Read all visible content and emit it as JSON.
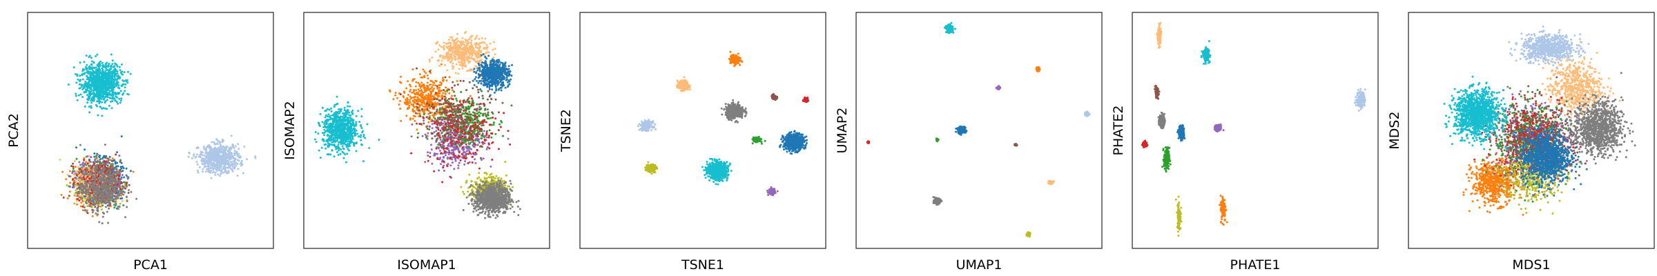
{
  "chart_data": [
    {
      "type": "scatter",
      "xlabel": "PCA1",
      "ylabel": "PCA2",
      "grid": false,
      "ticks": false,
      "xlim": [
        0,
        10
      ],
      "ylim": [
        0,
        10
      ],
      "clusters": [
        {
          "color": "#17becf",
          "center": [
            3.0,
            7.0
          ],
          "spread": [
            0.9,
            0.9
          ],
          "n": 950
        },
        {
          "color": "#aec7e8",
          "center": [
            7.8,
            3.8
          ],
          "spread": [
            0.9,
            0.65
          ],
          "n": 650
        },
        {
          "color": "#ff7f0e",
          "center": [
            2.8,
            2.7
          ],
          "spread": [
            1.0,
            1.0
          ],
          "n": 420
        },
        {
          "color": "#1f77b4",
          "center": [
            3.0,
            2.9
          ],
          "spread": [
            0.95,
            0.95
          ],
          "n": 420
        },
        {
          "color": "#2ca02c",
          "center": [
            2.9,
            2.8
          ],
          "spread": [
            0.95,
            0.95
          ],
          "n": 260
        },
        {
          "color": "#9467bd",
          "center": [
            2.9,
            2.9
          ],
          "spread": [
            0.95,
            0.95
          ],
          "n": 260
        },
        {
          "color": "#bcbd22",
          "center": [
            2.8,
            2.6
          ],
          "spread": [
            0.9,
            0.9
          ],
          "n": 220
        },
        {
          "color": "#8c564b",
          "center": [
            2.9,
            2.8
          ],
          "spread": [
            0.95,
            0.95
          ],
          "n": 220
        },
        {
          "color": "#ffbb78",
          "center": [
            2.7,
            2.9
          ],
          "spread": [
            0.9,
            0.9
          ],
          "n": 220
        },
        {
          "color": "#d62728",
          "center": [
            2.9,
            2.8
          ],
          "spread": [
            0.95,
            0.95
          ],
          "n": 200
        },
        {
          "color": "#7f7f7f",
          "center": [
            3.0,
            2.6
          ],
          "spread": [
            0.95,
            1.1
          ],
          "n": 500
        }
      ]
    },
    {
      "type": "scatter",
      "xlabel": "ISOMAP1",
      "ylabel": "ISOMAP2",
      "grid": false,
      "ticks": false,
      "xlim": [
        0,
        10
      ],
      "ylim": [
        0,
        10
      ],
      "clusters": [
        {
          "color": "#17becf",
          "center": [
            1.5,
            5.0
          ],
          "spread": [
            0.8,
            0.95
          ],
          "n": 750
        },
        {
          "color": "#ffbb78",
          "center": [
            6.5,
            8.3
          ],
          "spread": [
            1.1,
            0.7
          ],
          "n": 450
        },
        {
          "color": "#1f77b4",
          "center": [
            7.7,
            7.4
          ],
          "spread": [
            0.7,
            0.6
          ],
          "n": 600
        },
        {
          "color": "#ff7f0e",
          "center": [
            5.0,
            6.3
          ],
          "spread": [
            1.1,
            1.0
          ],
          "n": 450
        },
        {
          "color": "#9467bd",
          "center": [
            6.2,
            4.6
          ],
          "spread": [
            1.3,
            1.2
          ],
          "n": 450
        },
        {
          "color": "#2ca02c",
          "center": [
            6.5,
            5.4
          ],
          "spread": [
            1.3,
            1.2
          ],
          "n": 300
        },
        {
          "color": "#8c564b",
          "center": [
            6.2,
            5.6
          ],
          "spread": [
            1.5,
            1.4
          ],
          "n": 250
        },
        {
          "color": "#bcbd22",
          "center": [
            7.5,
            2.5
          ],
          "spread": [
            0.8,
            0.6
          ],
          "n": 400
        },
        {
          "color": "#7f7f7f",
          "center": [
            7.7,
            2.1
          ],
          "spread": [
            0.8,
            0.7
          ],
          "n": 800
        },
        {
          "color": "#d62728",
          "center": [
            6.4,
            5.0
          ],
          "spread": [
            1.6,
            1.6
          ],
          "n": 200
        }
      ]
    },
    {
      "type": "scatter",
      "xlabel": "TSNE1",
      "ylabel": "TSNE2",
      "grid": false,
      "ticks": false,
      "xlim": [
        0,
        10
      ],
      "ylim": [
        0,
        10
      ],
      "clusters": [
        {
          "color": "#ff7f0e",
          "center": [
            6.3,
            8.0
          ],
          "spread": [
            0.2,
            0.2
          ],
          "n": 200
        },
        {
          "color": "#ffbb78",
          "center": [
            4.2,
            6.9
          ],
          "spread": [
            0.25,
            0.22
          ],
          "n": 220
        },
        {
          "color": "#7f7f7f",
          "center": [
            6.3,
            5.8
          ],
          "spread": [
            0.4,
            0.32
          ],
          "n": 450
        },
        {
          "color": "#8c564b",
          "center": [
            7.9,
            6.4
          ],
          "spread": [
            0.12,
            0.12
          ],
          "n": 70
        },
        {
          "color": "#d62728",
          "center": [
            9.2,
            6.3
          ],
          "spread": [
            0.1,
            0.1
          ],
          "n": 60
        },
        {
          "color": "#aec7e8",
          "center": [
            2.7,
            5.2
          ],
          "spread": [
            0.26,
            0.2
          ],
          "n": 200
        },
        {
          "color": "#2ca02c",
          "center": [
            7.2,
            4.6
          ],
          "spread": [
            0.17,
            0.12
          ],
          "n": 120
        },
        {
          "color": "#1f77b4",
          "center": [
            8.7,
            4.5
          ],
          "spread": [
            0.45,
            0.38
          ],
          "n": 550
        },
        {
          "color": "#bcbd22",
          "center": [
            2.9,
            3.4
          ],
          "spread": [
            0.22,
            0.18
          ],
          "n": 180
        },
        {
          "color": "#17becf",
          "center": [
            5.6,
            3.3
          ],
          "spread": [
            0.45,
            0.38
          ],
          "n": 650
        },
        {
          "color": "#9467bd",
          "center": [
            7.8,
            2.4
          ],
          "spread": [
            0.15,
            0.15
          ],
          "n": 90
        }
      ]
    },
    {
      "type": "scatter",
      "xlabel": "UMAP1",
      "ylabel": "UMAP2",
      "grid": false,
      "ticks": false,
      "xlim": [
        0,
        10
      ],
      "ylim": [
        0,
        10
      ],
      "clusters": [
        {
          "color": "#17becf",
          "center": [
            3.8,
            9.3
          ],
          "spread": [
            0.14,
            0.17
          ],
          "n": 200
        },
        {
          "color": "#ff7f0e",
          "center": [
            7.4,
            7.6
          ],
          "spread": [
            0.07,
            0.1
          ],
          "n": 60
        },
        {
          "color": "#9467bd",
          "center": [
            5.8,
            6.8
          ],
          "spread": [
            0.07,
            0.07
          ],
          "n": 45
        },
        {
          "color": "#aec7e8",
          "center": [
            9.4,
            5.7
          ],
          "spread": [
            0.1,
            0.1
          ],
          "n": 60
        },
        {
          "color": "#1f77b4",
          "center": [
            4.3,
            5.0
          ],
          "spread": [
            0.17,
            0.14
          ],
          "n": 180
        },
        {
          "color": "#2ca02c",
          "center": [
            3.3,
            4.6
          ],
          "spread": [
            0.06,
            0.05
          ],
          "n": 40
        },
        {
          "color": "#d62728",
          "center": [
            0.5,
            4.5
          ],
          "spread": [
            0.04,
            0.05
          ],
          "n": 25
        },
        {
          "color": "#8c564b",
          "center": [
            6.5,
            4.4
          ],
          "spread": [
            0.04,
            0.05
          ],
          "n": 20
        },
        {
          "color": "#ffbb78",
          "center": [
            7.9,
            2.8
          ],
          "spread": [
            0.1,
            0.08
          ],
          "n": 80
        },
        {
          "color": "#7f7f7f",
          "center": [
            3.3,
            2.0
          ],
          "spread": [
            0.15,
            0.12
          ],
          "n": 170
        },
        {
          "color": "#bcbd22",
          "center": [
            7.0,
            0.6
          ],
          "spread": [
            0.08,
            0.08
          ],
          "n": 60
        }
      ]
    },
    {
      "type": "scatter",
      "xlabel": "PHATE1",
      "ylabel": "PHATE2",
      "grid": false,
      "ticks": false,
      "xlim": [
        0,
        10
      ],
      "ylim": [
        0,
        10
      ],
      "clusters": [
        {
          "color": "#ffbb78",
          "center": [
            1.1,
            9.0
          ],
          "spread": [
            0.07,
            0.45
          ],
          "n": 150
        },
        {
          "color": "#17becf",
          "center": [
            3.0,
            8.2
          ],
          "spread": [
            0.15,
            0.3
          ],
          "n": 140
        },
        {
          "color": "#8c564b",
          "center": [
            1.0,
            6.6
          ],
          "spread": [
            0.08,
            0.25
          ],
          "n": 80
        },
        {
          "color": "#7f7f7f",
          "center": [
            1.2,
            5.4
          ],
          "spread": [
            0.12,
            0.3
          ],
          "n": 160
        },
        {
          "color": "#aec7e8",
          "center": [
            9.3,
            6.3
          ],
          "spread": [
            0.2,
            0.4
          ],
          "n": 130
        },
        {
          "color": "#1f77b4",
          "center": [
            2.0,
            4.9
          ],
          "spread": [
            0.12,
            0.3
          ],
          "n": 180
        },
        {
          "color": "#9467bd",
          "center": [
            3.5,
            5.1
          ],
          "spread": [
            0.15,
            0.15
          ],
          "n": 110
        },
        {
          "color": "#d62728",
          "center": [
            0.5,
            4.4
          ],
          "spread": [
            0.09,
            0.15
          ],
          "n": 70
        },
        {
          "color": "#2ca02c",
          "center": [
            1.4,
            3.8
          ],
          "spread": [
            0.12,
            0.5
          ],
          "n": 160
        },
        {
          "color": "#ff7f0e",
          "center": [
            3.7,
            1.7
          ],
          "spread": [
            0.12,
            0.6
          ],
          "n": 120
        },
        {
          "color": "#bcbd22",
          "center": [
            1.9,
            1.4
          ],
          "spread": [
            0.08,
            0.7
          ],
          "n": 90
        }
      ]
    },
    {
      "type": "scatter",
      "xlabel": "MDS1",
      "ylabel": "MDS2",
      "grid": false,
      "ticks": false,
      "xlim": [
        0,
        10
      ],
      "ylim": [
        0,
        10
      ],
      "clusters": [
        {
          "color": "#ffbb78",
          "center": [
            6.8,
            6.8
          ],
          "spread": [
            1.2,
            1.2
          ],
          "n": 600
        },
        {
          "color": "#aec7e8",
          "center": [
            5.7,
            8.5
          ],
          "spread": [
            1.2,
            0.6
          ],
          "n": 700
        },
        {
          "color": "#ff7f0e",
          "center": [
            3.5,
            2.8
          ],
          "spread": [
            1.0,
            1.0
          ],
          "n": 600
        },
        {
          "color": "#9467bd",
          "center": [
            5.0,
            4.5
          ],
          "spread": [
            1.7,
            1.7
          ],
          "n": 450
        },
        {
          "color": "#2ca02c",
          "center": [
            5.0,
            4.6
          ],
          "spread": [
            1.7,
            1.7
          ],
          "n": 450
        },
        {
          "color": "#8c564b",
          "center": [
            5.1,
            4.7
          ],
          "spread": [
            1.7,
            1.7
          ],
          "n": 400
        },
        {
          "color": "#d62728",
          "center": [
            5.1,
            4.5
          ],
          "spread": [
            1.7,
            1.7
          ],
          "n": 350
        },
        {
          "color": "#bcbd22",
          "center": [
            5.0,
            3.0
          ],
          "spread": [
            1.3,
            1.2
          ],
          "n": 350
        },
        {
          "color": "#7f7f7f",
          "center": [
            7.7,
            5.1
          ],
          "spread": [
            1.1,
            1.2
          ],
          "n": 1000
        },
        {
          "color": "#1f77b4",
          "center": [
            5.6,
            3.9
          ],
          "spread": [
            1.1,
            1.2
          ],
          "n": 1000
        },
        {
          "color": "#17becf",
          "center": [
            2.8,
            5.7
          ],
          "spread": [
            1.0,
            1.05
          ],
          "n": 1200
        }
      ]
    }
  ]
}
